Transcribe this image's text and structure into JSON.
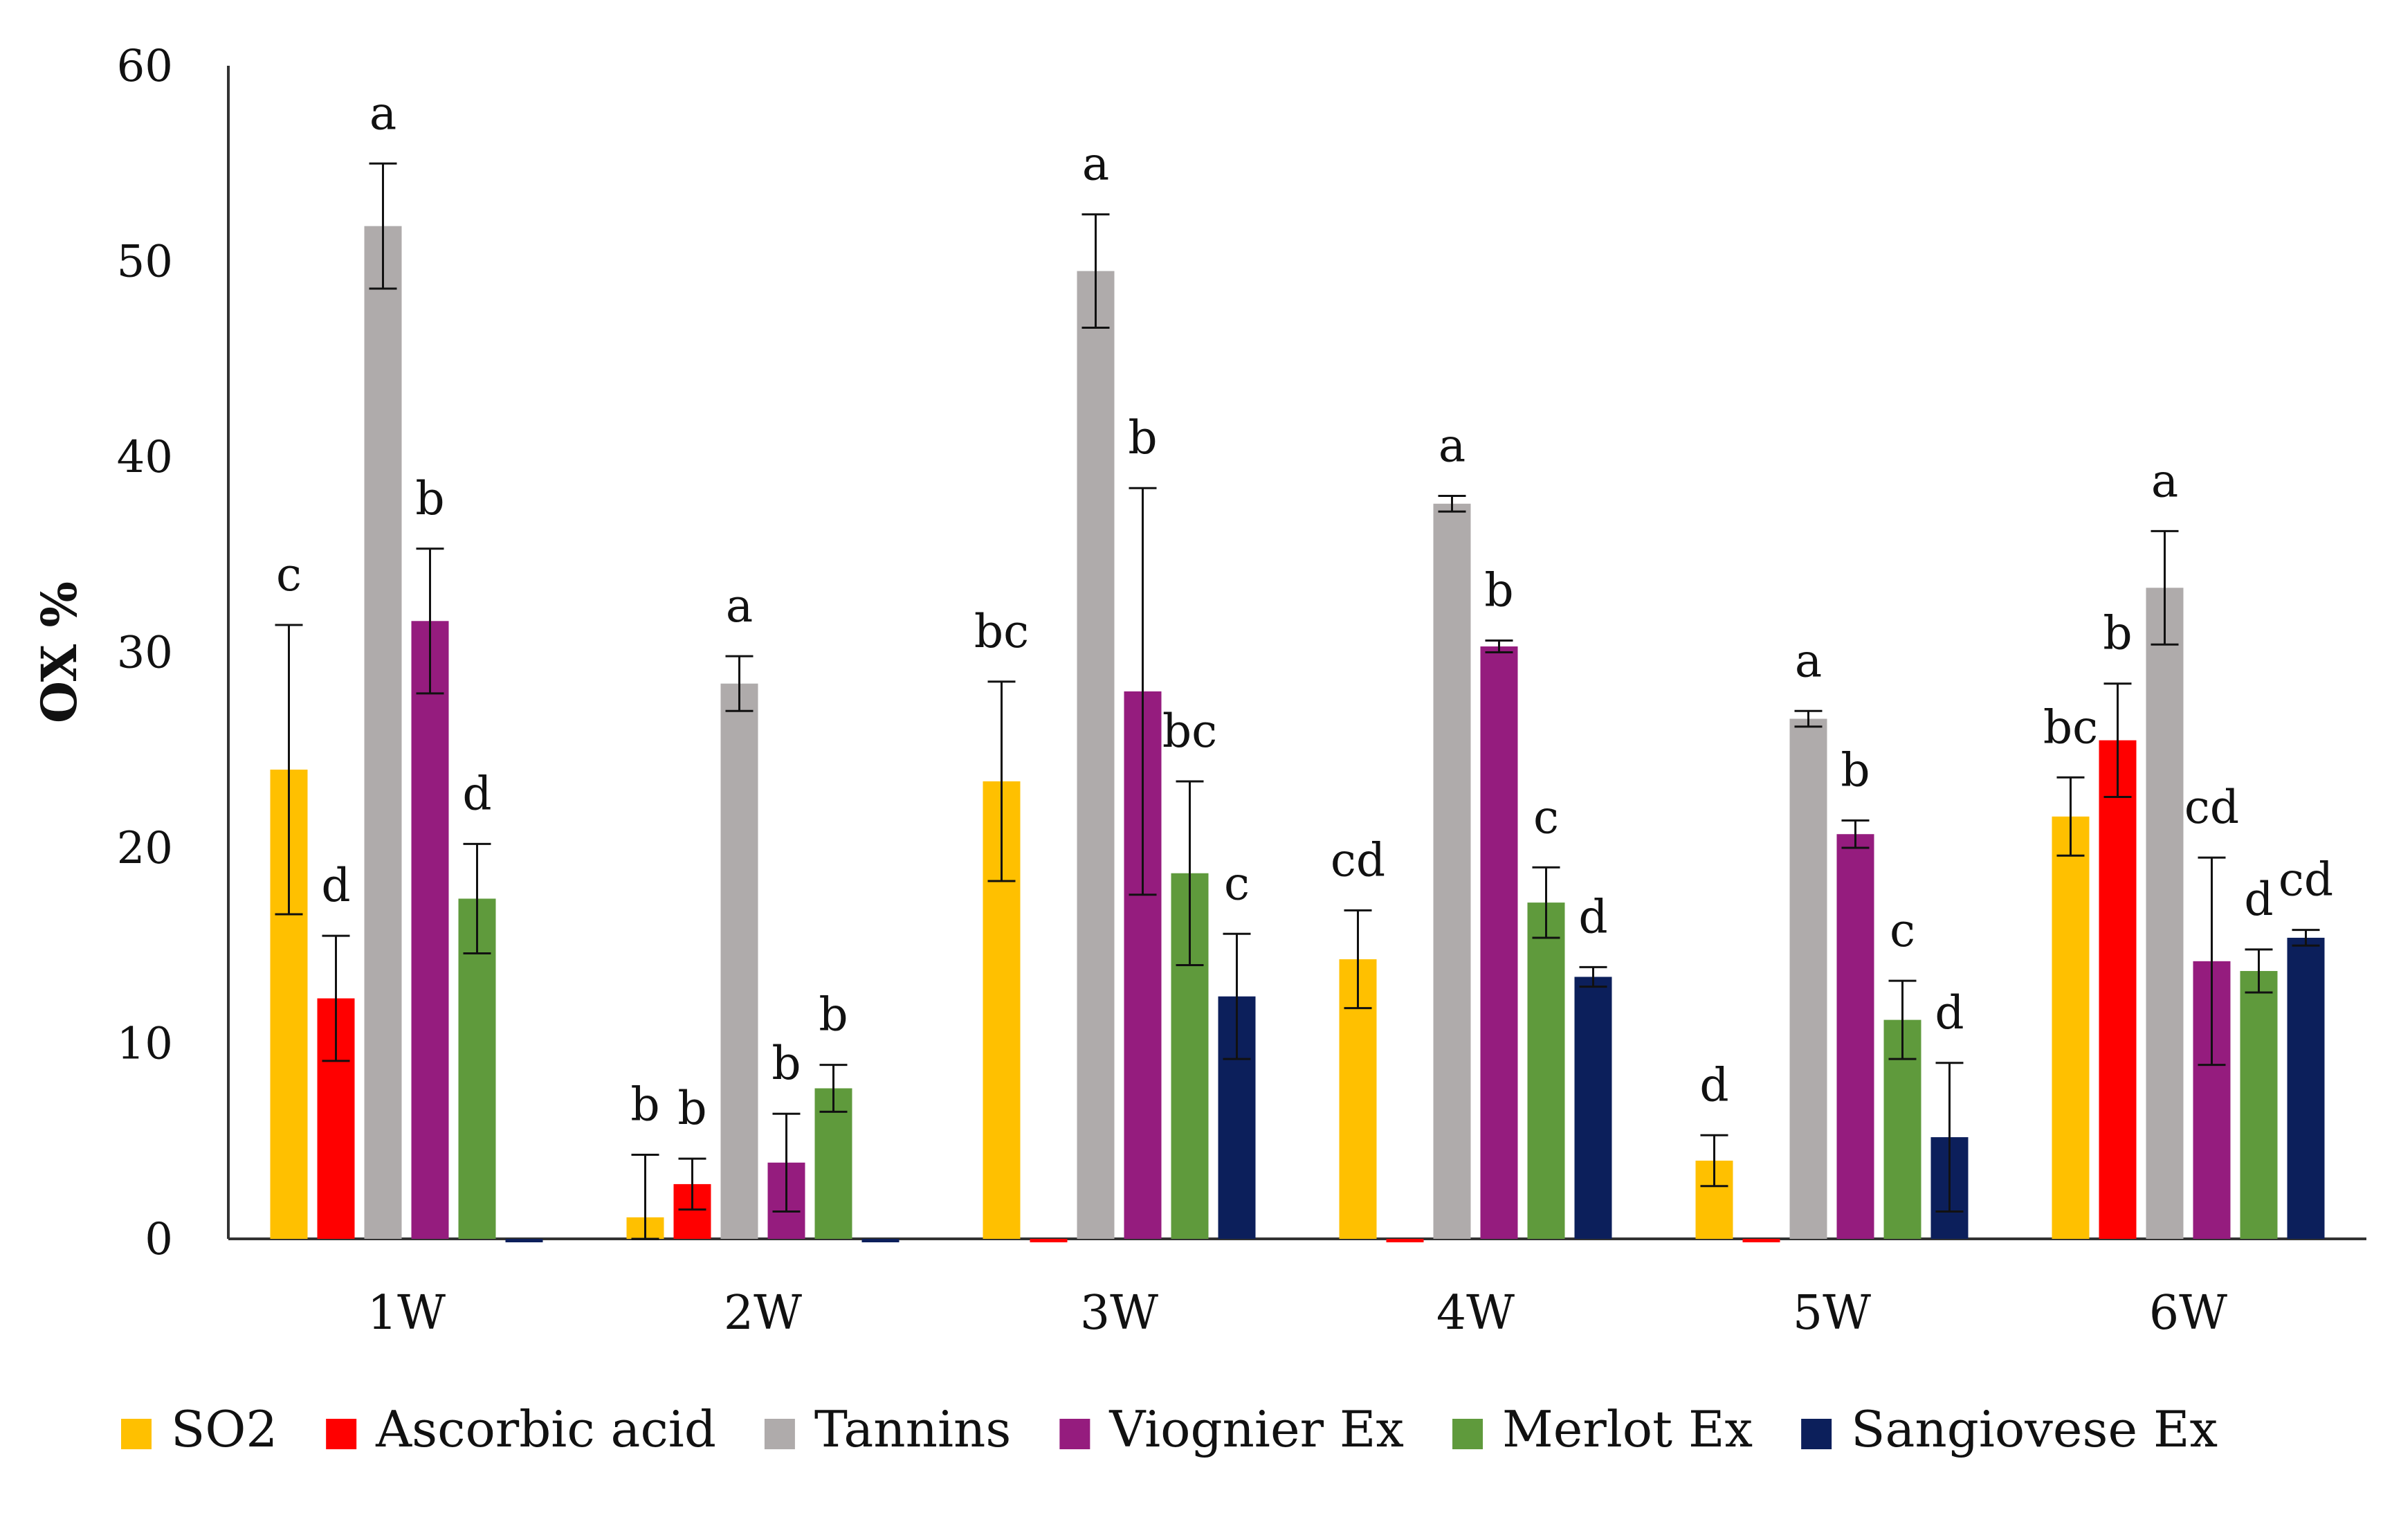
{
  "chart_data": {
    "type": "bar",
    "title": "",
    "xlabel": "",
    "ylabel": "OX %",
    "ylim": [
      0,
      60
    ],
    "yticks": [
      "0",
      "10",
      "20",
      "30",
      "40",
      "50",
      "60"
    ],
    "grid": false,
    "legend_position": "bottom",
    "categories": [
      "1W",
      "2W",
      "3W",
      "4W",
      "5W",
      "6W"
    ],
    "series": [
      {
        "name": "SO2",
        "color": "#FFC000",
        "values": [
          24.0,
          1.1,
          23.4,
          14.3,
          4.0,
          21.6
        ],
        "errors": [
          7.4,
          3.2,
          5.1,
          2.5,
          1.3,
          2.0
        ],
        "letters": [
          "c",
          "b",
          "bc",
          "cd",
          "d",
          "bc"
        ]
      },
      {
        "name": "Ascorbic acid",
        "color": "#FF0000",
        "values": [
          12.3,
          2.8,
          0,
          0,
          0,
          25.5
        ],
        "errors": [
          3.2,
          1.3,
          0,
          0,
          0,
          2.9
        ],
        "letters": [
          "d",
          "b",
          "",
          "",
          "",
          "b"
        ]
      },
      {
        "name": "Tannins",
        "color": "#AFABAB",
        "values": [
          51.8,
          28.4,
          49.5,
          37.6,
          26.6,
          33.3
        ],
        "errors": [
          3.2,
          1.4,
          2.9,
          0.4,
          0.4,
          2.9
        ],
        "letters": [
          "a",
          "a",
          "a",
          "a",
          "a",
          "a"
        ]
      },
      {
        "name": "Viognier Ex",
        "color": "#951C7E",
        "values": [
          31.6,
          3.9,
          28.0,
          30.3,
          20.7,
          14.2
        ],
        "errors": [
          3.7,
          2.5,
          10.4,
          0.3,
          0.7,
          5.3
        ],
        "letters": [
          "b",
          "b",
          "b",
          "b",
          "b",
          "cd"
        ]
      },
      {
        "name": "Merlot Ex",
        "color": "#5F9A3C",
        "values": [
          17.4,
          7.7,
          18.7,
          17.2,
          11.2,
          13.7
        ],
        "errors": [
          2.8,
          1.2,
          4.7,
          1.8,
          2.0,
          1.1
        ],
        "letters": [
          "d",
          "b",
          "bc",
          "c",
          "c",
          "d"
        ]
      },
      {
        "name": "Sangiovese Ex",
        "color": "#0C1F5B",
        "values": [
          0,
          0,
          12.4,
          13.4,
          5.2,
          15.4
        ],
        "errors": [
          0,
          0,
          3.2,
          0.5,
          3.8,
          0.4
        ],
        "letters": [
          "",
          "",
          "c",
          "d",
          "d",
          "cd"
        ]
      }
    ]
  }
}
